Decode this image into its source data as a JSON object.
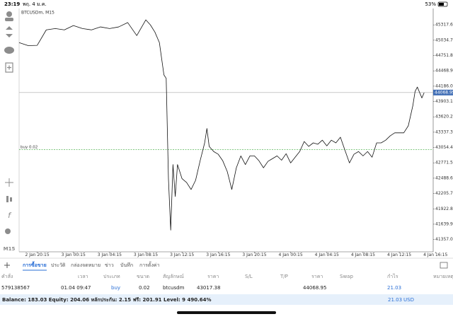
{
  "status_bar": {
    "time": "23:19",
    "date": "พฤ. 4 ม.ค.",
    "battery": "53%"
  },
  "timeframe": "M15",
  "chart_data": {
    "type": "line",
    "title": "BTCUSDm, M15",
    "color": "#111111",
    "x": [
      "2 Jan 18:15",
      "2 Jan 19:15",
      "2 Jan 20:15",
      "2 Jan 21:15",
      "2 Jan 22:15",
      "2 Jan 23:15",
      "3 Jan 00:15",
      "3 Jan 01:15",
      "3 Jan 02:15",
      "3 Jan 03:15",
      "3 Jan 04:15",
      "3 Jan 05:15",
      "3 Jan 06:15",
      "3 Jan 07:15",
      "3 Jan 08:15",
      "3 Jan 08:45",
      "3 Jan 09:15",
      "3 Jan 09:45",
      "3 Jan 10:15",
      "3 Jan 10:30",
      "3 Jan 10:45",
      "3 Jan 11:00",
      "3 Jan 11:15",
      "3 Jan 11:30",
      "3 Jan 11:45",
      "3 Jan 12:15",
      "3 Jan 12:45",
      "3 Jan 13:15",
      "3 Jan 13:45",
      "3 Jan 14:15",
      "3 Jan 14:45",
      "3 Jan 15:00",
      "3 Jan 15:15",
      "3 Jan 15:45",
      "3 Jan 16:15",
      "3 Jan 16:45",
      "3 Jan 17:15",
      "3 Jan 17:45",
      "3 Jan 18:15",
      "3 Jan 18:45",
      "3 Jan 19:15",
      "3 Jan 19:45",
      "3 Jan 20:15",
      "3 Jan 20:45",
      "3 Jan 21:15",
      "3 Jan 21:45",
      "3 Jan 22:15",
      "3 Jan 22:45",
      "3 Jan 23:15",
      "3 Jan 23:45",
      "4 Jan 00:15",
      "4 Jan 00:45",
      "4 Jan 01:15",
      "4 Jan 01:45",
      "4 Jan 02:15",
      "4 Jan 02:45",
      "4 Jan 03:15",
      "4 Jan 03:45",
      "4 Jan 04:15",
      "4 Jan 04:45",
      "4 Jan 05:15",
      "4 Jan 05:45",
      "4 Jan 06:15",
      "4 Jan 06:45",
      "4 Jan 07:15",
      "4 Jan 07:45",
      "4 Jan 08:15",
      "4 Jan 08:45",
      "4 Jan 09:15",
      "4 Jan 09:45",
      "4 Jan 10:15",
      "4 Jan 10:45",
      "4 Jan 11:15",
      "4 Jan 11:45",
      "4 Jan 12:15",
      "4 Jan 12:45",
      "4 Jan 13:15",
      "4 Jan 13:45",
      "4 Jan 14:00",
      "4 Jan 14:15",
      "4 Jan 14:45",
      "4 Jan 15:00"
    ],
    "values": [
      44990,
      44935,
      44940,
      45225,
      45250,
      45225,
      45305,
      45250,
      45225,
      45280,
      45250,
      45280,
      45360,
      45120,
      45410,
      45318,
      45185,
      44990,
      44395,
      44330,
      42480,
      41530,
      42740,
      42150,
      42740,
      42480,
      42410,
      42280,
      42450,
      42810,
      43140,
      43405,
      43075,
      42980,
      42930,
      42810,
      42610,
      42280,
      42680,
      42900,
      42740,
      42900,
      42900,
      42810,
      42680,
      42800,
      42850,
      42900,
      42820,
      42940,
      42770,
      42875,
      42980,
      43165,
      43075,
      43140,
      43115,
      43190,
      43085,
      43190,
      43140,
      43245,
      43005,
      42770,
      42930,
      42980,
      42900,
      42980,
      42875,
      43140,
      43140,
      43190,
      43270,
      43325,
      43325,
      43325,
      43455,
      43825,
      44090,
      44170,
      43970,
      44065
    ],
    "xlim": [
      "2 Jan 18:15",
      "4 Jan 16:00"
    ],
    "xticks": [
      "2 Jan 20:15",
      "3 Jan 00:15",
      "3 Jan 04:15",
      "3 Jan 08:15",
      "3 Jan 12:15",
      "3 Jan 16:15",
      "3 Jan 20:15",
      "4 Jan 00:15",
      "4 Jan 04:15",
      "4 Jan 08:15",
      "4 Jan 12:15",
      "4 Jan 16:15"
    ],
    "ylim": [
      41130,
      45620
    ],
    "yticks": [
      {
        "value": 45317.6,
        "label": "45317.60"
      },
      {
        "value": 45034.7,
        "label": "45034.70"
      },
      {
        "value": 44751.8,
        "label": "44751.80"
      },
      {
        "value": 44468.9,
        "label": "44468.90"
      },
      {
        "value": 44186,
        "label": "44186.00"
      },
      {
        "value": 43903.1,
        "label": "43903.10"
      },
      {
        "value": 43620.2,
        "label": "43620.20"
      },
      {
        "value": 43337.3,
        "label": "43337.30"
      },
      {
        "value": 43054.4,
        "label": "43054.40"
      },
      {
        "value": 42771.5,
        "label": "42771.50"
      },
      {
        "value": 42488.6,
        "label": "42488.60"
      },
      {
        "value": 42205.7,
        "label": "42205.70"
      },
      {
        "value": 41922.8,
        "label": "41922.80"
      },
      {
        "value": 41639.9,
        "label": "41639.90"
      },
      {
        "value": 41357,
        "label": "41357.00"
      }
    ],
    "price_line": 44068.95,
    "order_line": {
      "label": "buy 0.02",
      "value": 43017.38
    },
    "grid": false
  },
  "tabs": [
    "การซื้อขาย",
    "ประวัติ",
    "กล่องจดหมาย",
    "ข่าว",
    "บันทึก",
    "การตั้งค่า"
  ],
  "table": {
    "headers": [
      "คำสั่ง",
      "เวลา",
      "ประเภท",
      "ขนาด",
      "สัญลักษณ์",
      "ราคา",
      "S/L",
      "T/P",
      "ราคา",
      "Swap",
      "กำไร",
      "หมายเหตุ"
    ],
    "rows": [
      [
        "579138567",
        "01.04 09:47",
        "buy",
        "0.02",
        "btcusdm",
        "43017.38",
        "",
        "",
        "44068.95",
        "",
        "21.03",
        ""
      ]
    ]
  },
  "balance": {
    "text": "Balance: 183.03 Equity: 204.06 หลักประกัน: 2.15 ฟรี: 201.91 Level: 9 490.64%",
    "profit": "21.03",
    "currency": "USD"
  }
}
